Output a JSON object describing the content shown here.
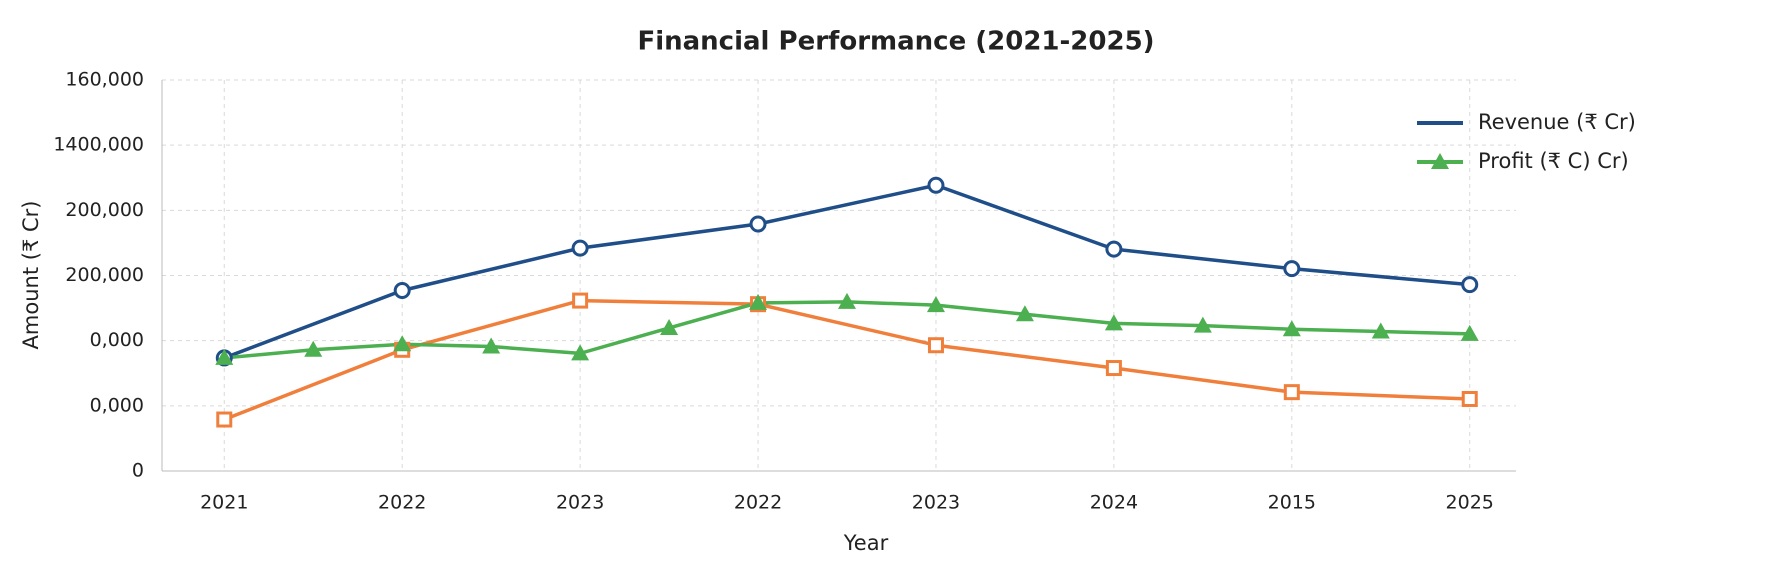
{
  "chart_data": {
    "type": "line",
    "title": "Financial Performance (2021-2025)",
    "x_label": "Year",
    "y_label": "Amount (₹ Cr)",
    "xlim": [
      -0.35,
      7.26
    ],
    "xticks": [
      {
        "value": 0,
        "label": "2021"
      },
      {
        "value": 1,
        "label": "2022"
      },
      {
        "value": 2,
        "label": "2023"
      },
      {
        "value": 3,
        "label": "2022"
      },
      {
        "value": 4,
        "label": "2023"
      },
      {
        "value": 5,
        "label": "2024"
      },
      {
        "value": 6,
        "label": "2015"
      },
      {
        "value": 7,
        "label": "2025"
      }
    ],
    "ylim": [
      0,
      120000
    ],
    "yticks": [
      0,
      {
        "value": 20000,
        "label": "0,000"
      },
      {
        "value": 40000,
        "label": "0,000"
      },
      {
        "value": 60000,
        "label": "200,000"
      },
      {
        "value": 80000,
        "label": "200,000"
      },
      {
        "value": 100000,
        "label": "1400,000"
      },
      {
        "value": 120000,
        "label": "160,000"
      }
    ],
    "grid": true,
    "legend": "upper right",
    "series": [
      {
        "name": "Revenue (₹ Cr)",
        "color": "#1f4e89",
        "marker": "circle",
        "x": [
          0,
          1,
          2,
          3,
          4,
          5,
          6,
          7
        ],
        "values": [
          34700,
          55400,
          68400,
          75800,
          87700,
          68100,
          62100,
          57200
        ]
      },
      {
        "color": "#f07f3c",
        "marker": "square",
        "x": [
          0,
          1,
          2,
          3,
          4,
          5,
          6,
          7
        ],
        "values": [
          15800,
          37200,
          52300,
          51200,
          38600,
          31600,
          24200,
          22100
        ]
      },
      {
        "name": "Profit (₹ C) Cr)",
        "color": "#4caf50",
        "marker": "triangle",
        "x": [
          0,
          0.5,
          1,
          1.5,
          2,
          2.5,
          3,
          3.5,
          4,
          4.5,
          5,
          5.5,
          6,
          6.5,
          7
        ],
        "values": [
          34700,
          37200,
          38900,
          38200,
          36100,
          43900,
          51600,
          51900,
          50900,
          48100,
          45300,
          44600,
          43500,
          42800,
          42100
        ]
      }
    ]
  }
}
